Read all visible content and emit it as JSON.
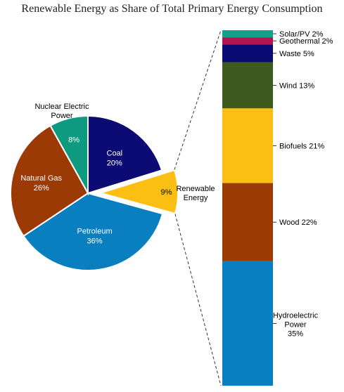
{
  "chart_data": {
    "type": "pie",
    "title": "Renewable Energy as Share of Total Primary Energy Consumption",
    "pie": {
      "slices": [
        {
          "label": "Coal",
          "value_label": "20%",
          "value": 20,
          "color": "#0b0b73"
        },
        {
          "label": "Renewable Energy",
          "value_label": "9%",
          "value": 9,
          "color": "#fbbf14",
          "exploded": true
        },
        {
          "label": "Petroleum",
          "value_label": "36%",
          "value": 36,
          "color": "#0a7fbf"
        },
        {
          "label": "Natural Gas",
          "value_label": "26%",
          "value": 26,
          "color": "#9c3a06"
        },
        {
          "label": "Nuclear Electric Power",
          "value_label": "8%",
          "value": 8,
          "color": "#0e9a80"
        }
      ]
    },
    "breakdown": {
      "of": "Renewable Energy",
      "type": "stacked-bar",
      "segments": [
        {
          "label": "Solar/PV 2%",
          "value": 2,
          "color": "#14a08a"
        },
        {
          "label": "Geothermal 2%",
          "value": 2,
          "color": "#b5124f"
        },
        {
          "label": "Waste  5%",
          "value": 5,
          "color": "#0b0b73"
        },
        {
          "label": "Wind 13%",
          "value": 13,
          "color": "#3f5a1e"
        },
        {
          "label": "Biofuels  21%",
          "value": 21,
          "color": "#fbbf14"
        },
        {
          "label": "Wood 22%",
          "value": 22,
          "color": "#9c3a06"
        },
        {
          "label": "Hydroelectric Power 35%",
          "value": 35,
          "color": "#0a7fbf"
        }
      ]
    }
  }
}
